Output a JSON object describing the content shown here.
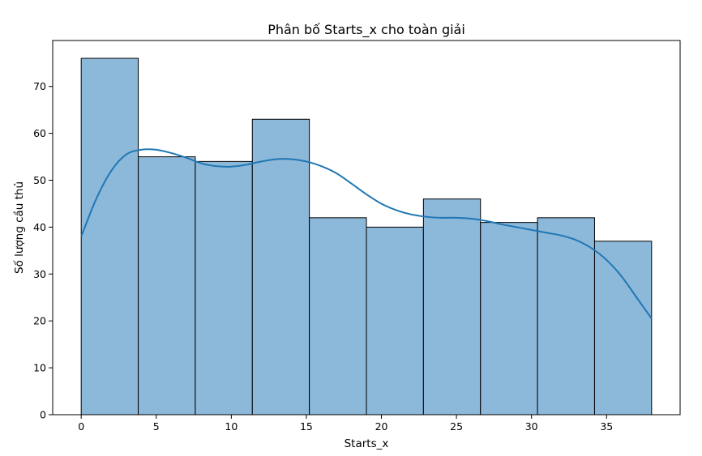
{
  "chart_data": {
    "type": "histogram",
    "title": "Phân bố Starts_x cho toàn giải",
    "xlabel": "Starts_x",
    "ylabel": "Số lượng cầu thủ",
    "xlim": [
      -1.9,
      39.9
    ],
    "ylim": [
      0,
      79.8
    ],
    "xticks": [
      0,
      5,
      10,
      15,
      20,
      25,
      30,
      35
    ],
    "yticks": [
      0,
      10,
      20,
      30,
      40,
      50,
      60,
      70
    ],
    "bin_edges": [
      0,
      3.8,
      7.6,
      11.4,
      15.2,
      19,
      22.8,
      26.6,
      30.4,
      34.2,
      38
    ],
    "counts": [
      76,
      55,
      54,
      63,
      42,
      40,
      46,
      41,
      42,
      37
    ],
    "kde": {
      "x": [
        0,
        1,
        2,
        3,
        4,
        5,
        6,
        7,
        8,
        9,
        10,
        11,
        12,
        13,
        14,
        15,
        16,
        17,
        18,
        19,
        20,
        21,
        22,
        23,
        24,
        25,
        26,
        27,
        28,
        29,
        30,
        31,
        32,
        33,
        34,
        35,
        36,
        37,
        38
      ],
      "y": [
        38,
        46,
        52,
        55.5,
        56.5,
        56.5,
        55.8,
        54.8,
        53.6,
        53,
        52.9,
        53.3,
        54,
        54.5,
        54.5,
        54,
        53,
        51.5,
        49.3,
        47,
        45,
        43.6,
        42.7,
        42.2,
        42,
        42,
        41.8,
        41.3,
        40.6,
        40,
        39.4,
        38.8,
        38.2,
        37.2,
        35.5,
        33,
        29.5,
        25,
        20.5
      ]
    },
    "bar_color": "#8cb8d9",
    "bar_edge": "#000000",
    "line_color": "#1f77b4",
    "grid": false,
    "legend": false
  }
}
